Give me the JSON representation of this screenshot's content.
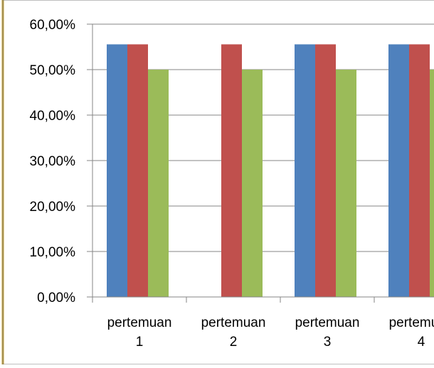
{
  "chart_data": {
    "type": "bar",
    "categories": [
      [
        "pertemuan",
        "1"
      ],
      [
        "pertemuan",
        "2"
      ],
      [
        "pertemuan",
        "3"
      ],
      [
        "pertemuan",
        "4"
      ]
    ],
    "series": [
      {
        "color": "#4F81BD",
        "values": [
          55.56,
          0,
          55.56,
          55.56
        ]
      },
      {
        "color": "#C0504D",
        "values": [
          55.56,
          55.56,
          55.56,
          55.56
        ]
      },
      {
        "color": "#9BBB59",
        "values": [
          50,
          50,
          50,
          50
        ]
      }
    ],
    "ylim": [
      0,
      60
    ],
    "yticks": [
      "0,00%",
      "10,00%",
      "20,00%",
      "30,00%",
      "40,00%",
      "50,00%",
      "60,00%"
    ],
    "grid": true,
    "legend": "none",
    "title": "",
    "xlabel": "",
    "ylabel": ""
  },
  "colors": {
    "background": "#ffffff",
    "frame": "#c9a227",
    "gridline": "#868686",
    "axis": "#868686"
  }
}
